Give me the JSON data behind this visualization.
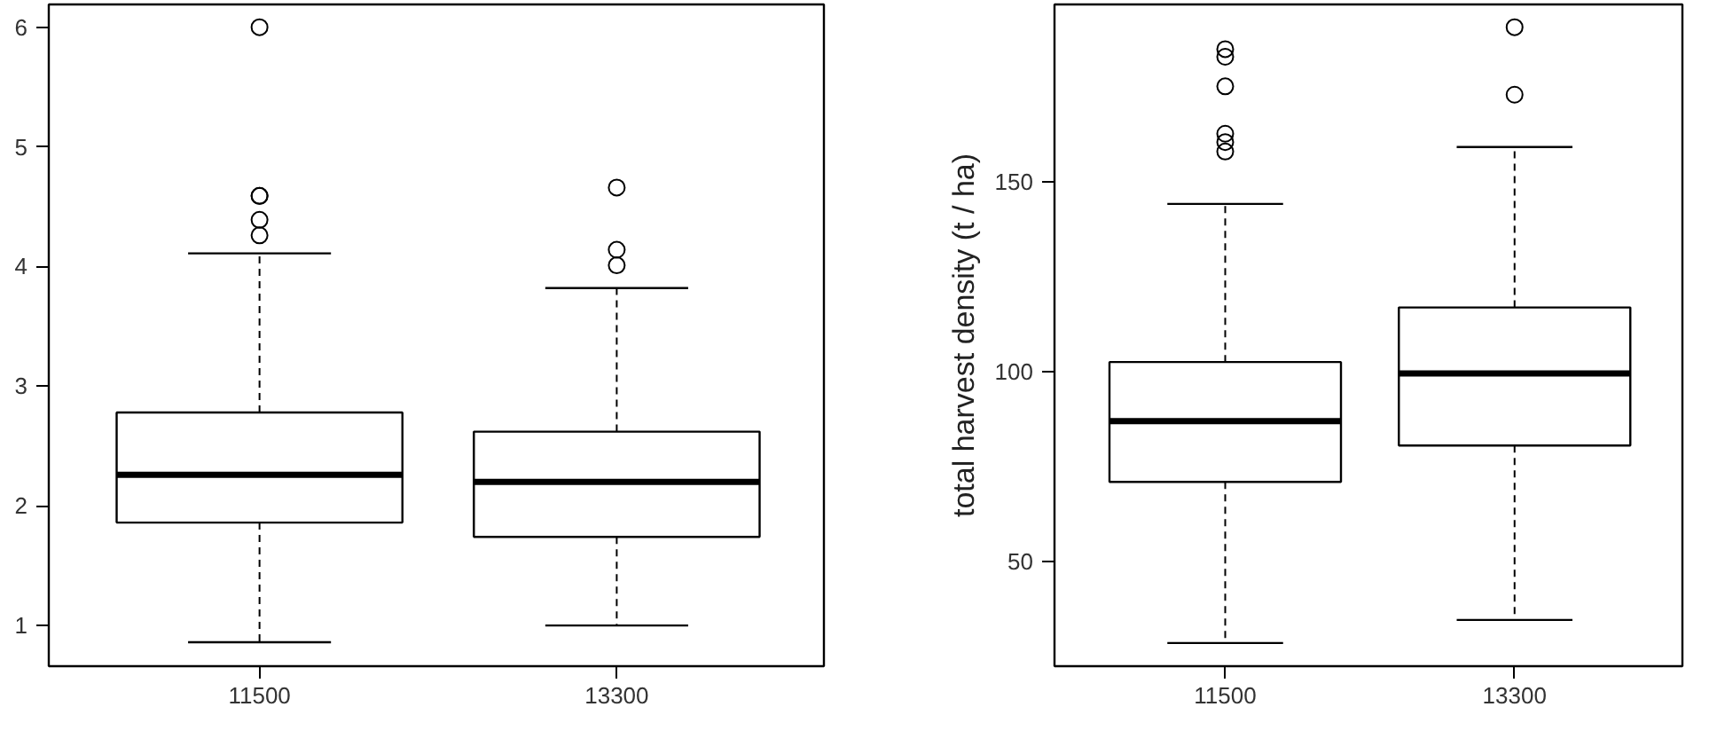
{
  "chart_data": [
    {
      "type": "box",
      "categories": [
        "11500",
        "13300"
      ],
      "ylim": [
        0.66,
        6.19
      ],
      "yticks": [
        1,
        2,
        3,
        4,
        5,
        6
      ],
      "grid": false,
      "boxes": [
        {
          "low": 0.86,
          "q1": 1.86,
          "median": 2.26,
          "q3": 2.78,
          "high": 4.11,
          "outliers": [
            6.0,
            4.59,
            4.59,
            4.39,
            4.26
          ]
        },
        {
          "low": 1.0,
          "q1": 1.74,
          "median": 2.2,
          "q3": 2.62,
          "high": 3.82,
          "outliers": [
            4.66,
            4.14,
            4.01
          ]
        }
      ]
    },
    {
      "type": "box",
      "categories": [
        "11500",
        "13300"
      ],
      "ylabel": "total harvest density (t / ha)",
      "ylim": [
        22.3,
        196.8
      ],
      "yticks": [
        50,
        100,
        150
      ],
      "grid": false,
      "boxes": [
        {
          "low": 28.4,
          "q1": 70.9,
          "median": 86.9,
          "q3": 102.5,
          "high": 144.2,
          "outliers": [
            185,
            183,
            175.2,
            162.7,
            160.5,
            158
          ]
        },
        {
          "low": 34.5,
          "q1": 80.5,
          "median": 99.5,
          "q3": 116.9,
          "high": 159.2,
          "outliers": [
            190.8,
            173
          ]
        }
      ]
    }
  ]
}
